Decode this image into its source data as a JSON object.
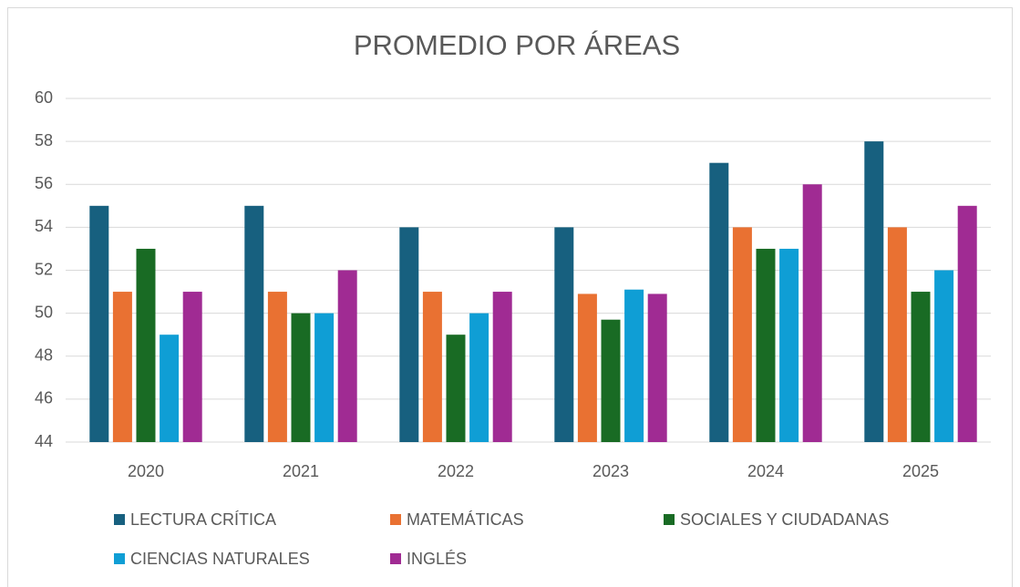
{
  "chart_data": {
    "type": "bar",
    "title": "PROMEDIO POR ÁREAS",
    "categories": [
      "2020",
      "2021",
      "2022",
      "2023",
      "2024",
      "2025"
    ],
    "series": [
      {
        "name": "LECTURA CRÍTICA",
        "color": "#17607f",
        "values": [
          55,
          55,
          54,
          54,
          57,
          58
        ]
      },
      {
        "name": "MATEMÁTICAS",
        "color": "#e97132",
        "values": [
          51,
          51,
          51,
          50.9,
          54,
          54
        ]
      },
      {
        "name": "SOCIALES Y CIUDADANAS",
        "color": "#196b24",
        "values": [
          53,
          50,
          49,
          49.7,
          53,
          51
        ]
      },
      {
        "name": "CIENCIAS NATURALES",
        "color": "#0f9ed5",
        "values": [
          49,
          50,
          50,
          51.1,
          53,
          52
        ]
      },
      {
        "name": "INGLÉS",
        "color": "#a02b93",
        "values": [
          51,
          52,
          51,
          50.9,
          56,
          55
        ]
      }
    ],
    "ylim": [
      44,
      60
    ],
    "yticks": [
      44,
      46,
      48,
      50,
      52,
      54,
      56,
      58,
      60
    ],
    "grid": true,
    "legend": "bottom"
  }
}
